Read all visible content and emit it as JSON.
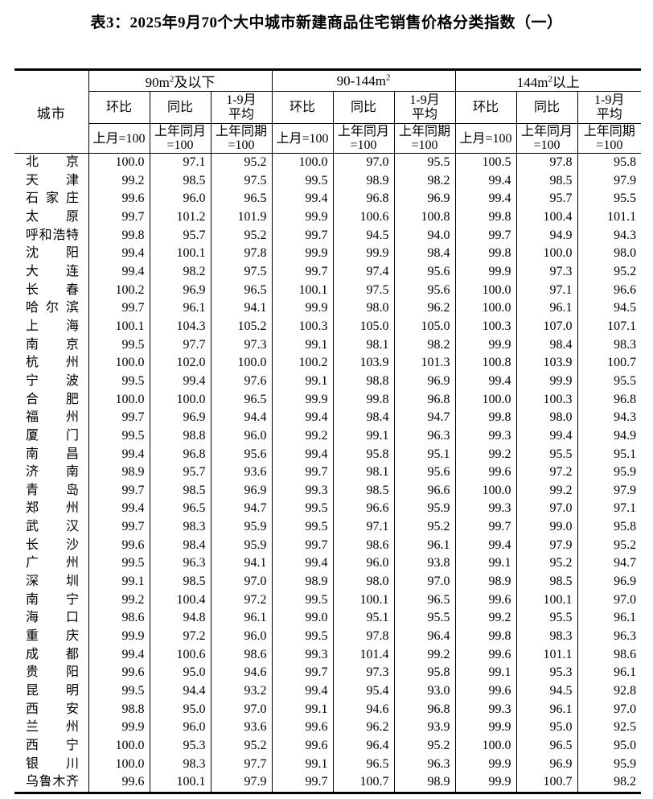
{
  "title": "表3：2025年9月70个大中城市新建商品住宅销售价格分类指数（一）",
  "table": {
    "city_header": "城市",
    "groups": [
      {
        "prefix": "90m",
        "sup": "2",
        "suffix": "及以下"
      },
      {
        "prefix": "90-144m",
        "sup": "2",
        "suffix": ""
      },
      {
        "prefix": "144m",
        "sup": "2",
        "suffix": "以上"
      }
    ],
    "sub_headers": [
      "环比",
      "同比",
      "1-9月\n平均"
    ],
    "base_headers": [
      "上月=100",
      "上年同月\n=100",
      "上年同期\n=100"
    ],
    "rows": [
      {
        "city": "北京",
        "values": [
          "100.0",
          "97.1",
          "95.2",
          "100.0",
          "97.0",
          "95.5",
          "100.5",
          "97.8",
          "95.8"
        ]
      },
      {
        "city": "天津",
        "values": [
          "99.2",
          "98.5",
          "97.5",
          "99.5",
          "98.9",
          "98.2",
          "99.4",
          "98.5",
          "97.9"
        ]
      },
      {
        "city": "石家庄",
        "values": [
          "99.6",
          "96.0",
          "96.5",
          "99.4",
          "96.8",
          "96.9",
          "99.4",
          "95.7",
          "95.5"
        ]
      },
      {
        "city": "太原",
        "values": [
          "99.7",
          "101.2",
          "101.9",
          "99.9",
          "100.6",
          "100.8",
          "99.8",
          "100.4",
          "101.1"
        ]
      },
      {
        "city": "呼和浩特",
        "values": [
          "99.8",
          "95.7",
          "95.2",
          "99.7",
          "94.5",
          "94.0",
          "99.7",
          "94.9",
          "94.3"
        ]
      },
      {
        "city": "沈阳",
        "values": [
          "99.4",
          "100.1",
          "97.8",
          "99.9",
          "99.9",
          "98.4",
          "99.8",
          "100.0",
          "98.0"
        ]
      },
      {
        "city": "大连",
        "values": [
          "99.4",
          "98.2",
          "97.5",
          "99.7",
          "97.4",
          "95.6",
          "99.9",
          "97.3",
          "95.2"
        ]
      },
      {
        "city": "长春",
        "values": [
          "100.2",
          "96.9",
          "96.5",
          "100.1",
          "97.5",
          "95.6",
          "100.0",
          "97.1",
          "96.6"
        ]
      },
      {
        "city": "哈尔滨",
        "values": [
          "99.7",
          "96.1",
          "94.1",
          "99.9",
          "98.0",
          "96.2",
          "100.0",
          "96.1",
          "94.5"
        ]
      },
      {
        "city": "上海",
        "values": [
          "100.1",
          "104.3",
          "105.2",
          "100.3",
          "105.0",
          "105.0",
          "100.3",
          "107.0",
          "107.1"
        ]
      },
      {
        "city": "南京",
        "values": [
          "99.5",
          "97.7",
          "97.3",
          "99.1",
          "98.1",
          "98.2",
          "99.9",
          "98.4",
          "98.3"
        ]
      },
      {
        "city": "杭州",
        "values": [
          "100.0",
          "102.0",
          "100.0",
          "100.2",
          "103.9",
          "101.3",
          "100.8",
          "103.9",
          "100.7"
        ]
      },
      {
        "city": "宁波",
        "values": [
          "99.5",
          "99.4",
          "97.6",
          "99.1",
          "98.8",
          "96.9",
          "99.4",
          "99.9",
          "95.5"
        ]
      },
      {
        "city": "合肥",
        "values": [
          "100.0",
          "100.0",
          "96.5",
          "99.9",
          "99.8",
          "96.8",
          "100.0",
          "100.3",
          "96.8"
        ]
      },
      {
        "city": "福州",
        "values": [
          "99.7",
          "96.9",
          "94.4",
          "99.4",
          "98.4",
          "94.7",
          "99.8",
          "98.0",
          "94.3"
        ]
      },
      {
        "city": "厦门",
        "values": [
          "99.5",
          "98.8",
          "96.0",
          "99.2",
          "99.1",
          "96.3",
          "99.3",
          "99.4",
          "94.9"
        ]
      },
      {
        "city": "南昌",
        "values": [
          "99.4",
          "96.8",
          "95.6",
          "99.4",
          "95.8",
          "95.1",
          "99.2",
          "95.5",
          "95.1"
        ]
      },
      {
        "city": "济南",
        "values": [
          "98.9",
          "95.7",
          "93.6",
          "99.7",
          "98.1",
          "95.6",
          "99.6",
          "97.2",
          "95.9"
        ]
      },
      {
        "city": "青岛",
        "values": [
          "99.7",
          "98.5",
          "96.9",
          "99.3",
          "98.5",
          "96.6",
          "100.0",
          "99.2",
          "97.9"
        ]
      },
      {
        "city": "郑州",
        "values": [
          "99.4",
          "96.5",
          "94.7",
          "99.5",
          "96.6",
          "95.9",
          "99.3",
          "97.0",
          "97.1"
        ]
      },
      {
        "city": "武汉",
        "values": [
          "99.7",
          "98.3",
          "95.9",
          "99.5",
          "97.1",
          "95.2",
          "99.7",
          "99.0",
          "95.8"
        ]
      },
      {
        "city": "长沙",
        "values": [
          "99.6",
          "98.4",
          "95.9",
          "99.7",
          "98.6",
          "96.1",
          "99.4",
          "97.9",
          "95.2"
        ]
      },
      {
        "city": "广州",
        "values": [
          "99.5",
          "96.3",
          "94.1",
          "99.4",
          "96.0",
          "93.8",
          "99.1",
          "95.2",
          "94.7"
        ]
      },
      {
        "city": "深圳",
        "values": [
          "99.1",
          "98.5",
          "97.0",
          "98.9",
          "98.0",
          "97.0",
          "98.9",
          "98.5",
          "96.9"
        ]
      },
      {
        "city": "南宁",
        "values": [
          "99.2",
          "100.4",
          "97.2",
          "99.5",
          "100.1",
          "96.5",
          "99.6",
          "100.1",
          "97.0"
        ]
      },
      {
        "city": "海口",
        "values": [
          "98.6",
          "94.8",
          "96.1",
          "99.0",
          "95.1",
          "95.5",
          "99.2",
          "95.5",
          "96.1"
        ]
      },
      {
        "city": "重庆",
        "values": [
          "99.9",
          "97.2",
          "96.0",
          "99.5",
          "97.8",
          "96.4",
          "99.8",
          "98.3",
          "96.3"
        ]
      },
      {
        "city": "成都",
        "values": [
          "99.4",
          "100.6",
          "98.6",
          "99.3",
          "101.4",
          "99.2",
          "99.6",
          "101.1",
          "98.6"
        ]
      },
      {
        "city": "贵阳",
        "values": [
          "99.6",
          "95.0",
          "94.6",
          "99.7",
          "97.3",
          "95.8",
          "99.1",
          "95.3",
          "96.1"
        ]
      },
      {
        "city": "昆明",
        "values": [
          "99.5",
          "94.4",
          "93.2",
          "99.4",
          "95.4",
          "93.0",
          "99.6",
          "94.5",
          "92.8"
        ]
      },
      {
        "city": "西安",
        "values": [
          "98.8",
          "95.0",
          "97.0",
          "99.1",
          "94.6",
          "96.8",
          "99.3",
          "96.1",
          "97.0"
        ]
      },
      {
        "city": "兰州",
        "values": [
          "99.9",
          "96.0",
          "93.6",
          "99.6",
          "96.2",
          "93.9",
          "99.9",
          "95.0",
          "92.5"
        ]
      },
      {
        "city": "西宁",
        "values": [
          "100.0",
          "95.3",
          "95.2",
          "99.6",
          "96.4",
          "95.2",
          "100.0",
          "96.5",
          "95.0"
        ]
      },
      {
        "city": "银川",
        "values": [
          "100.0",
          "98.3",
          "97.7",
          "99.1",
          "96.5",
          "96.3",
          "99.9",
          "96.9",
          "95.9"
        ]
      },
      {
        "city": "乌鲁木齐",
        "values": [
          "99.6",
          "100.1",
          "97.9",
          "99.7",
          "100.7",
          "98.9",
          "99.9",
          "100.7",
          "98.2"
        ]
      }
    ]
  }
}
